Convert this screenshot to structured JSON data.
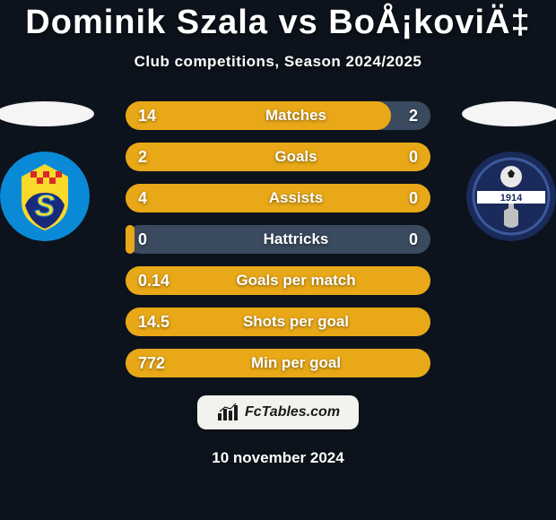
{
  "colors": {
    "background": "#0d131c",
    "title_text": "#ffffff",
    "subtitle_text": "#ffffff",
    "bar_bg": "#3a4a5f",
    "bar_fill": "#e8a817",
    "bar_text": "#ffffff",
    "branding_bg": "#f2f2ee",
    "branding_text": "#1a1a1a",
    "date_text": "#ffffff",
    "flag_bg": "#f5f5f5"
  },
  "typography": {
    "title_fontsize": 38,
    "subtitle_fontsize": 17,
    "bar_value_fontsize": 18,
    "bar_label_fontsize": 17,
    "branding_fontsize": 16,
    "date_fontsize": 17
  },
  "title": "Dominik Szala vs BoÅ¡koviÄ‡",
  "subtitle": "Club competitions, Season 2024/2025",
  "player_left": {
    "club_name": "HNK Šibenik",
    "club_logo_colors": {
      "outer": "#0a8ad6",
      "inner_top": "#f9d92a",
      "inner_bottom": "#1a2a7a"
    }
  },
  "player_right": {
    "club_name": "NK Lokomotiva",
    "club_logo_colors": {
      "outer": "#1a2a5a",
      "stripe": "#ffffff",
      "ball": "#e8e8e8"
    }
  },
  "bars": [
    {
      "label": "Matches",
      "left": "14",
      "right": "2",
      "fill_pct": 87
    },
    {
      "label": "Goals",
      "left": "2",
      "right": "0",
      "fill_pct": 100
    },
    {
      "label": "Assists",
      "left": "4",
      "right": "0",
      "fill_pct": 100
    },
    {
      "label": "Hattricks",
      "left": "0",
      "right": "0",
      "fill_pct": 3
    },
    {
      "label": "Goals per match",
      "left": "0.14",
      "right": "",
      "fill_pct": 100
    },
    {
      "label": "Shots per goal",
      "left": "14.5",
      "right": "",
      "fill_pct": 100
    },
    {
      "label": "Min per goal",
      "left": "772",
      "right": "",
      "fill_pct": 100
    }
  ],
  "branding": "FcTables.com",
  "date_text": "10 november 2024"
}
